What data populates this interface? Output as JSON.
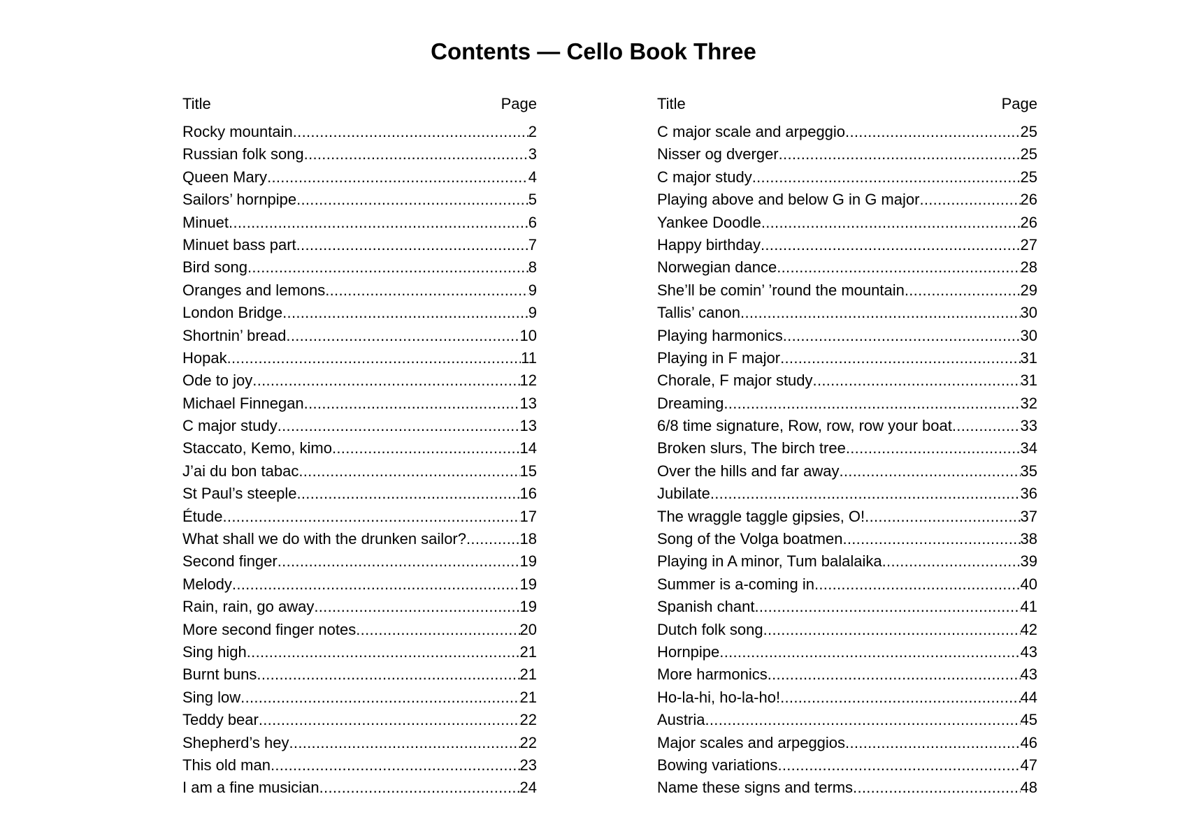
{
  "title": "Contents — Cello Book Three",
  "columns": [
    {
      "header_title": "Title",
      "header_page": "Page",
      "entries": [
        {
          "title": "Rocky mountain",
          "page": "2"
        },
        {
          "title": "Russian folk song",
          "page": "3"
        },
        {
          "title": "Queen Mary",
          "page": "4"
        },
        {
          "title": "Sailors’ hornpipe",
          "page": "5"
        },
        {
          "title": "Minuet",
          "page": "6"
        },
        {
          "title": "Minuet bass part",
          "page": "7"
        },
        {
          "title": "Bird song",
          "page": "8"
        },
        {
          "title": "Oranges and lemons",
          "page": "9"
        },
        {
          "title": "London Bridge",
          "page": "9"
        },
        {
          "title": "Shortnin’ bread",
          "page": "10"
        },
        {
          "title": "Hopak",
          "page": "11"
        },
        {
          "title": "Ode to joy",
          "page": "12"
        },
        {
          "title": "Michael Finnegan",
          "page": "13"
        },
        {
          "title": "C major study",
          "page": "13"
        },
        {
          "title": "Staccato, Kemo, kimo",
          "page": "14"
        },
        {
          "title": "J’ai du bon tabac",
          "page": "15"
        },
        {
          "title": "St Paul’s steeple",
          "page": "16"
        },
        {
          "title": "Étude",
          "page": "17"
        },
        {
          "title": "What shall we do with the drunken sailor?",
          "page": "18"
        },
        {
          "title": "Second finger",
          "page": "19"
        },
        {
          "title": "Melody",
          "page": "19"
        },
        {
          "title": "Rain, rain, go away",
          "page": "19"
        },
        {
          "title": "More second finger notes",
          "page": "20"
        },
        {
          "title": "Sing high",
          "page": "21"
        },
        {
          "title": "Burnt buns",
          "page": "21"
        },
        {
          "title": "Sing low",
          "page": "21"
        },
        {
          "title": "Teddy bear ",
          "page": "22"
        },
        {
          "title": "Shepherd’s hey",
          "page": "22"
        },
        {
          "title": "This old man",
          "page": "23"
        },
        {
          "title": "I am a fine musician",
          "page": "24"
        }
      ]
    },
    {
      "header_title": "Title",
      "header_page": "Page",
      "entries": [
        {
          "title": "C major scale and arpeggio",
          "page": "25"
        },
        {
          "title": "Nisser og dverger",
          "page": "25"
        },
        {
          "title": "C major study",
          "page": "25"
        },
        {
          "title": "Playing above and below G in G major",
          "page": "26"
        },
        {
          "title": "Yankee Doodle",
          "page": "26"
        },
        {
          "title": "Happy birthday",
          "page": "27"
        },
        {
          "title": "Norwegian dance",
          "page": "28"
        },
        {
          "title": "She’ll be comin’ ’round the mountain",
          "page": "29"
        },
        {
          "title": "Tallis’ canon",
          "page": "30"
        },
        {
          "title": "Playing harmonics",
          "page": "30"
        },
        {
          "title": "Playing in F major",
          "page": "31"
        },
        {
          "title": "Chorale, F major study",
          "page": "31"
        },
        {
          "title": "Dreaming",
          "page": "32"
        },
        {
          "title": "6/8 time signature, Row, row, row your boat",
          "page": "33"
        },
        {
          "title": "Broken slurs, The birch tree",
          "page": "34"
        },
        {
          "title": "Over the hills and far away",
          "page": "35"
        },
        {
          "title": "Jubilate",
          "page": "36"
        },
        {
          "title": "The wraggle taggle gipsies, O!",
          "page": "37"
        },
        {
          "title": "Song of the Volga boatmen",
          "page": "38"
        },
        {
          "title": "Playing in A minor, Tum balalaika",
          "page": "39"
        },
        {
          "title": "Summer is a-coming in",
          "page": "40"
        },
        {
          "title": "Spanish chant",
          "page": "41"
        },
        {
          "title": "Dutch folk song",
          "page": "42"
        },
        {
          "title": "Hornpipe",
          "page": "43"
        },
        {
          "title": "More harmonics",
          "page": "43"
        },
        {
          "title": "Ho-la-hi, ho-la-ho!",
          "page": "44"
        },
        {
          "title": "Austria",
          "page": "45"
        },
        {
          "title": "Major scales and arpeggios",
          "page": "46"
        },
        {
          "title": "Bowing variations",
          "page": "47"
        },
        {
          "title": "Name these signs and terms",
          "page": "48"
        }
      ]
    }
  ]
}
